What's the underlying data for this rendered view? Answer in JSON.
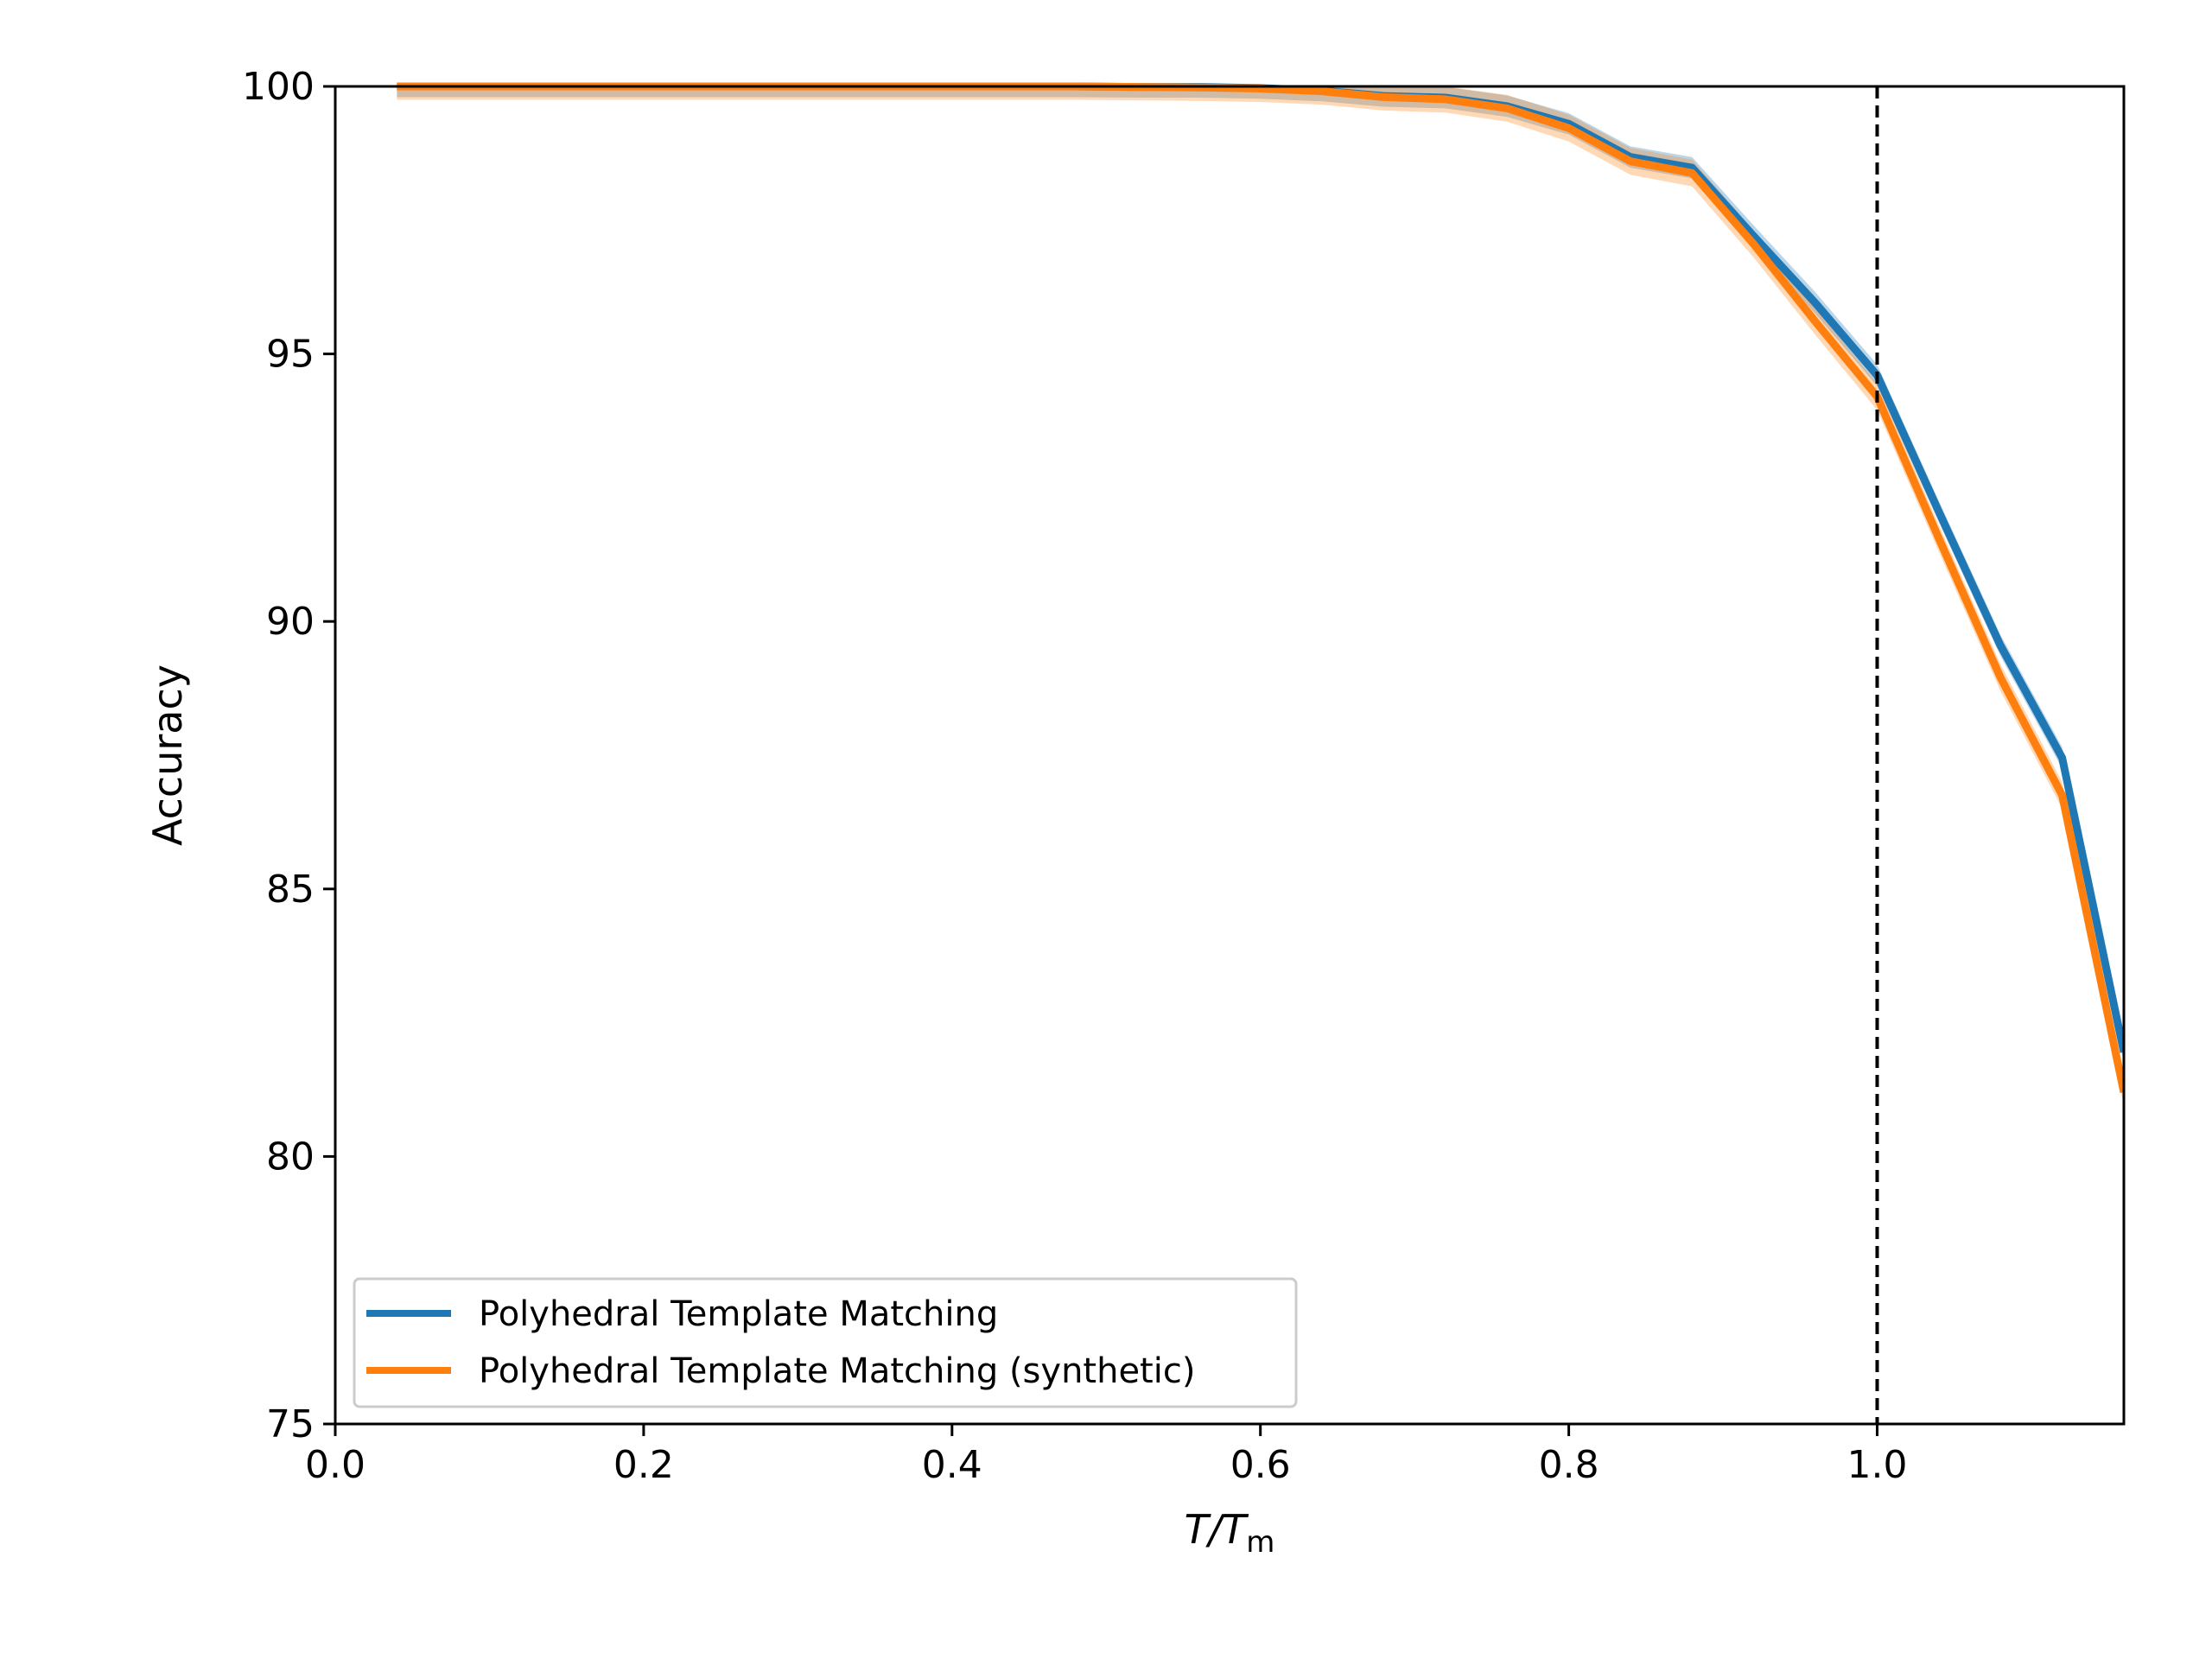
{
  "chart_data": {
    "type": "line",
    "title": "",
    "xlabel": {
      "main": "T/T",
      "sub": "m"
    },
    "ylabel": "Accuracy",
    "xlim": [
      0.0,
      1.16
    ],
    "ylim": [
      75,
      100
    ],
    "xticks": [
      {
        "value": 0.0,
        "label": "0.0"
      },
      {
        "value": 0.2,
        "label": "0.2"
      },
      {
        "value": 0.4,
        "label": "0.4"
      },
      {
        "value": 0.6,
        "label": "0.6"
      },
      {
        "value": 0.8,
        "label": "0.8"
      },
      {
        "value": 1.0,
        "label": "1.0"
      }
    ],
    "yticks": [
      {
        "value": 75,
        "label": "75"
      },
      {
        "value": 80,
        "label": "80"
      },
      {
        "value": 85,
        "label": "85"
      },
      {
        "value": 90,
        "label": "90"
      },
      {
        "value": 95,
        "label": "95"
      },
      {
        "value": 100,
        "label": "100"
      }
    ],
    "grid": false,
    "legend_position": "lower-left",
    "vline": {
      "x": 1.0,
      "style": "dashed",
      "color": "#000000"
    },
    "x": [
      0.04,
      0.08,
      0.12,
      0.16,
      0.2,
      0.24,
      0.28,
      0.32,
      0.36,
      0.4,
      0.44,
      0.48,
      0.52,
      0.56,
      0.6,
      0.64,
      0.68,
      0.72,
      0.76,
      0.8,
      0.84,
      0.88,
      0.92,
      0.96,
      1.0,
      1.04,
      1.08,
      1.12,
      1.16
    ],
    "series": [
      {
        "name": "Polyhedral Template Matching",
        "color": "#1f77b4",
        "values": [
          100,
          100,
          100,
          100,
          100,
          100,
          100,
          100,
          100,
          100,
          100,
          100,
          99.99,
          99.99,
          99.97,
          99.92,
          99.82,
          99.79,
          99.63,
          99.3,
          98.68,
          98.48,
          97.2,
          95.95,
          94.6,
          92.05,
          89.55,
          87.45,
          81.95
        ],
        "band": 0.2
      },
      {
        "name": "Polyhedral Template Matching (synthetic)",
        "color": "#ff7f0e",
        "values": [
          100,
          100,
          100,
          100,
          100,
          100,
          100,
          100,
          100,
          100,
          100,
          100,
          99.99,
          99.98,
          99.96,
          99.91,
          99.8,
          99.76,
          99.59,
          99.22,
          98.6,
          98.38,
          97.05,
          95.6,
          94.2,
          91.55,
          88.95,
          86.75,
          81.2
        ],
        "band": 0.25
      }
    ]
  }
}
